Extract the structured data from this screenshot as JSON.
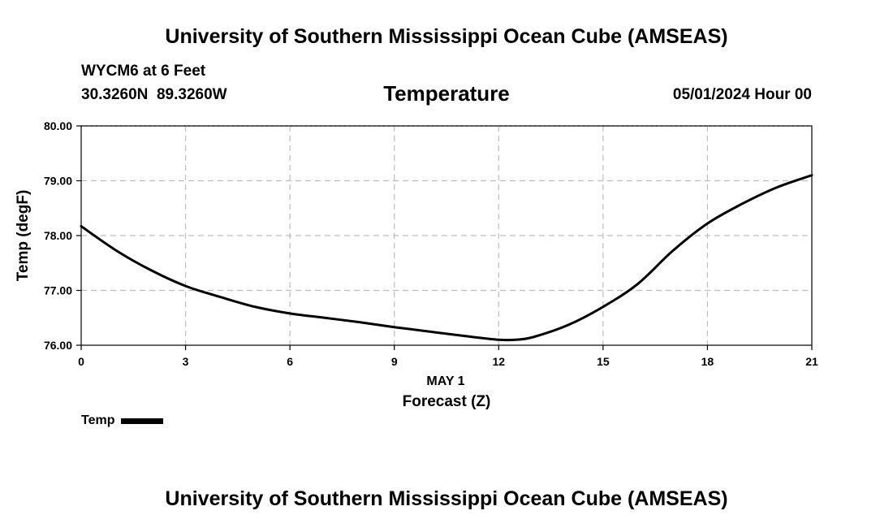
{
  "header": {
    "top_title": "University of Southern Mississippi Ocean Cube (AMSEAS)",
    "station": "WYCM6 at 6 Feet",
    "coords": "30.3260N  89.3260W",
    "chart_title": "Temperature",
    "date": "05/01/2024 Hour 00"
  },
  "footer": {
    "bottom_title": "University of Southern Mississippi Ocean Cube (AMSEAS)"
  },
  "legend": {
    "label": "Temp"
  },
  "chart_data": {
    "type": "line",
    "title": "Temperature",
    "xlabel": "Forecast (Z)",
    "xsublabel": "MAY 1",
    "ylabel": "Temp (degF)",
    "xlim": [
      0,
      21
    ],
    "ylim": [
      76,
      80
    ],
    "xticks": [
      0,
      3,
      6,
      9,
      12,
      15,
      18,
      21
    ],
    "yticks": [
      76,
      77,
      78,
      79,
      80
    ],
    "ytick_labels": [
      "76.00",
      "77.00",
      "78.00",
      "79.00",
      "80.00"
    ],
    "grid": true,
    "series": [
      {
        "name": "Temp",
        "color": "#000000",
        "x": [
          0,
          1,
          2,
          3,
          4,
          5,
          6,
          7,
          8,
          9,
          10,
          11,
          12,
          12.5,
          13,
          14,
          15,
          16,
          17,
          18,
          19,
          20,
          21
        ],
        "y": [
          78.17,
          77.73,
          77.37,
          77.08,
          76.88,
          76.7,
          76.58,
          76.5,
          76.42,
          76.33,
          76.25,
          76.17,
          76.1,
          76.1,
          76.15,
          76.37,
          76.7,
          77.12,
          77.72,
          78.22,
          78.58,
          78.88,
          79.1
        ]
      }
    ]
  }
}
